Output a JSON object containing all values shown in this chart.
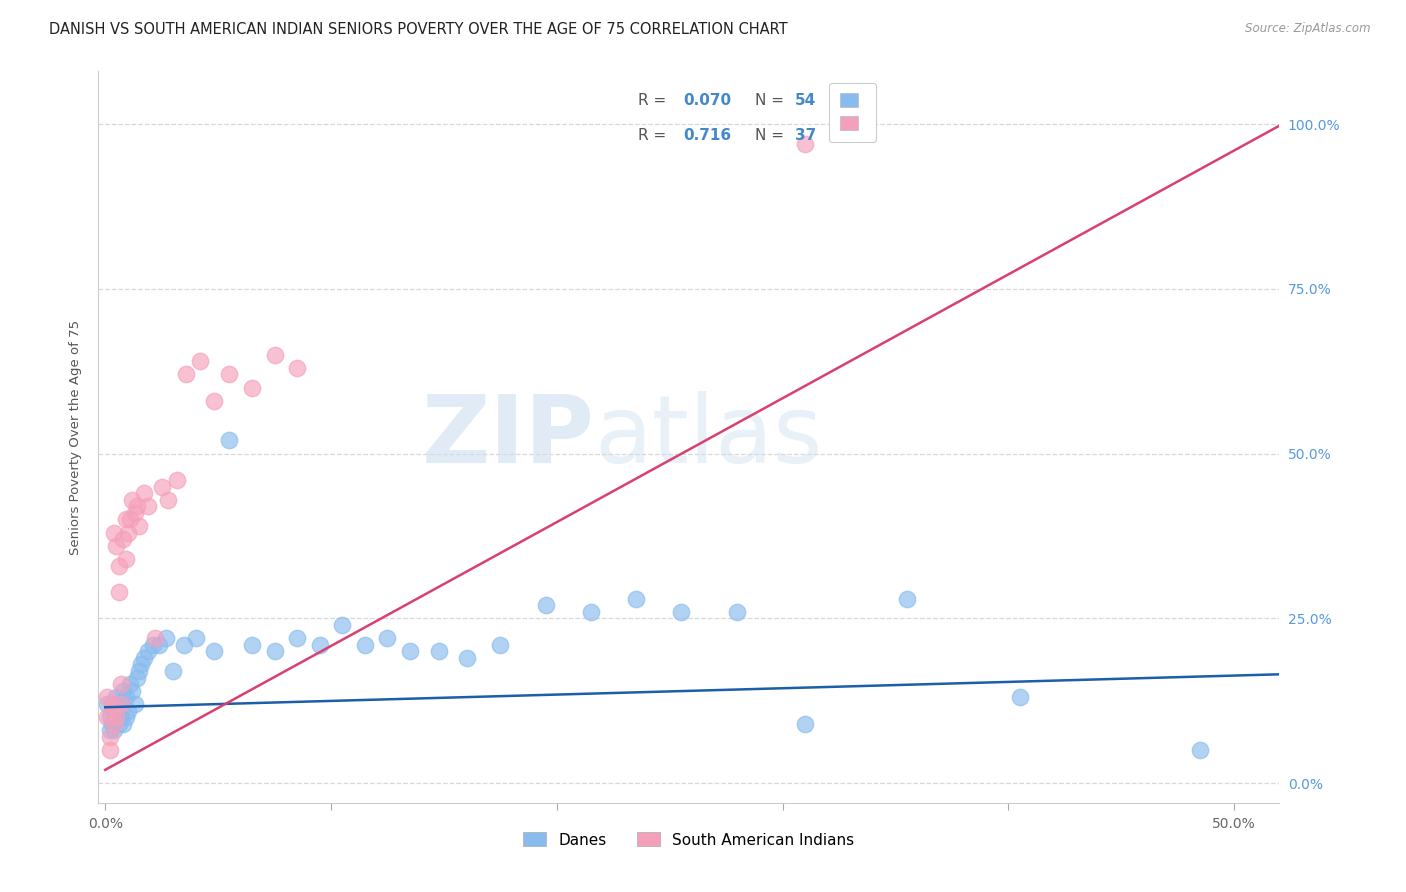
{
  "title": "DANISH VS SOUTH AMERICAN INDIAN SENIORS POVERTY OVER THE AGE OF 75 CORRELATION CHART",
  "source": "Source: ZipAtlas.com",
  "ylabel": "Seniors Poverty Over the Age of 75",
  "xlim": [
    -0.003,
    0.52
  ],
  "ylim": [
    -0.03,
    1.08
  ],
  "xticks": [
    0.0,
    0.1,
    0.2,
    0.3,
    0.4,
    0.5
  ],
  "xticklabels_show": [
    "0.0%",
    "",
    "",
    "",
    "",
    "50.0%"
  ],
  "yticks": [
    0.0,
    0.25,
    0.5,
    0.75,
    1.0
  ],
  "yticklabels": [
    "0.0%",
    "25.0%",
    "50.0%",
    "75.0%",
    "100.0%"
  ],
  "blue_color": "#88bbee",
  "pink_color": "#f5a0bb",
  "blue_line_color": "#1a5fa8",
  "pink_line_color": "#d94070",
  "danes_label": "Danes",
  "sai_label": "South American Indians",
  "background_color": "#ffffff",
  "grid_color": "#d8d8d8",
  "title_fontsize": 10.5,
  "tick_fontsize": 10,
  "right_tick_color": "#5599dd",
  "watermark_color": "#ccdff0",
  "danes_x": [
    0.001,
    0.002,
    0.002,
    0.003,
    0.003,
    0.004,
    0.004,
    0.005,
    0.005,
    0.006,
    0.006,
    0.007,
    0.007,
    0.008,
    0.008,
    0.009,
    0.009,
    0.01,
    0.011,
    0.012,
    0.013,
    0.014,
    0.015,
    0.016,
    0.017,
    0.019,
    0.021,
    0.024,
    0.027,
    0.03,
    0.035,
    0.04,
    0.048,
    0.055,
    0.065,
    0.075,
    0.085,
    0.095,
    0.105,
    0.115,
    0.125,
    0.135,
    0.148,
    0.16,
    0.175,
    0.195,
    0.215,
    0.235,
    0.255,
    0.28,
    0.31,
    0.355,
    0.405,
    0.485
  ],
  "danes_y": [
    0.12,
    0.1,
    0.08,
    0.12,
    0.09,
    0.11,
    0.08,
    0.1,
    0.13,
    0.09,
    0.11,
    0.1,
    0.12,
    0.09,
    0.14,
    0.1,
    0.13,
    0.11,
    0.15,
    0.14,
    0.12,
    0.16,
    0.17,
    0.18,
    0.19,
    0.2,
    0.21,
    0.21,
    0.22,
    0.17,
    0.21,
    0.22,
    0.2,
    0.52,
    0.21,
    0.2,
    0.22,
    0.21,
    0.24,
    0.21,
    0.22,
    0.2,
    0.2,
    0.19,
    0.21,
    0.27,
    0.26,
    0.28,
    0.26,
    0.26,
    0.09,
    0.28,
    0.13,
    0.05
  ],
  "sai_x": [
    0.001,
    0.001,
    0.002,
    0.002,
    0.003,
    0.003,
    0.004,
    0.004,
    0.005,
    0.005,
    0.006,
    0.006,
    0.007,
    0.007,
    0.008,
    0.009,
    0.009,
    0.01,
    0.011,
    0.012,
    0.013,
    0.014,
    0.015,
    0.017,
    0.019,
    0.022,
    0.025,
    0.028,
    0.032,
    0.036,
    0.042,
    0.048,
    0.055,
    0.065,
    0.075,
    0.085,
    0.31
  ],
  "sai_y": [
    0.1,
    0.13,
    0.07,
    0.05,
    0.11,
    0.12,
    0.09,
    0.38,
    0.1,
    0.36,
    0.29,
    0.33,
    0.12,
    0.15,
    0.37,
    0.34,
    0.4,
    0.38,
    0.4,
    0.43,
    0.41,
    0.42,
    0.39,
    0.44,
    0.42,
    0.22,
    0.45,
    0.43,
    0.46,
    0.62,
    0.64,
    0.58,
    0.62,
    0.6,
    0.65,
    0.63,
    0.97
  ],
  "blue_trend_x": [
    0.0,
    0.52
  ],
  "blue_trend_y": [
    0.115,
    0.165
  ],
  "pink_trend_x0": 0.0,
  "pink_trend_x1": 0.52,
  "pink_trend_y_intercept": 0.02,
  "pink_trend_slope": 1.88
}
